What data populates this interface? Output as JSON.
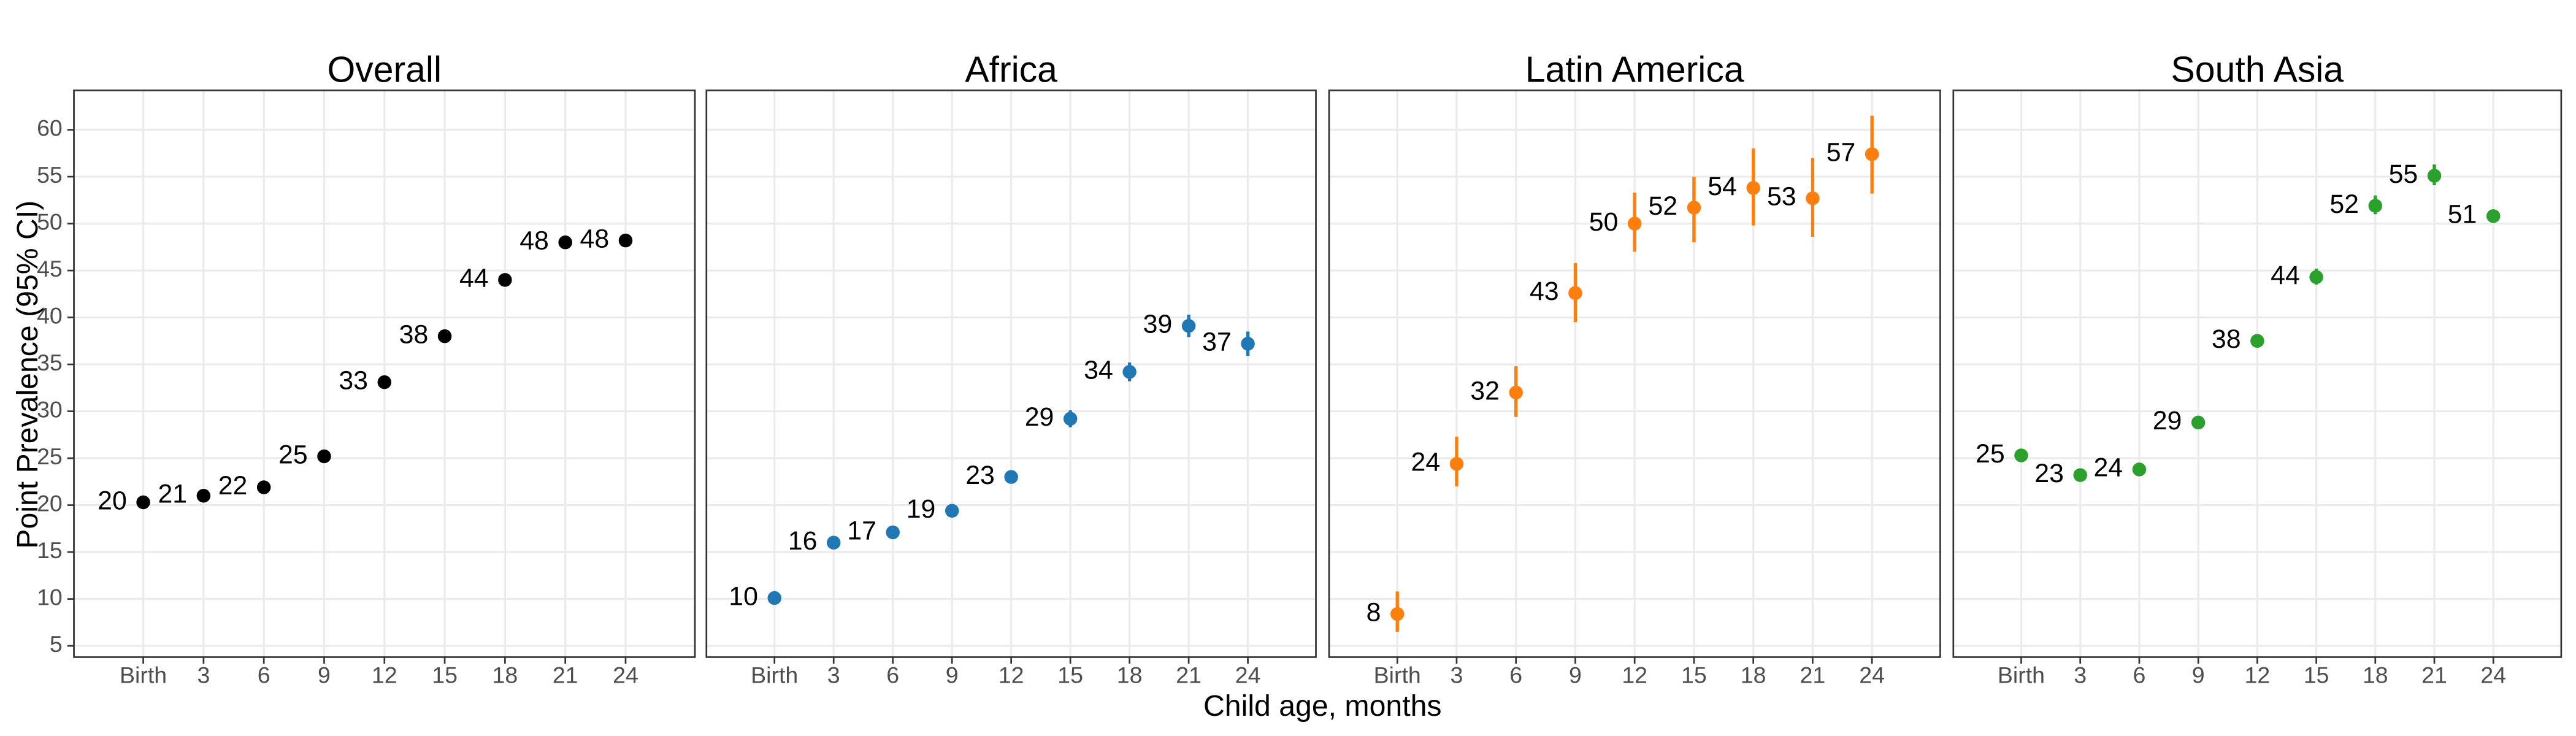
{
  "ylabel": "Point Prevalence (95% CI)",
  "xlabel": "Child age, months",
  "chart_data": [
    {
      "type": "scatter",
      "title": "Overall",
      "color": "#000000",
      "categories": [
        "Birth",
        "3",
        "6",
        "9",
        "12",
        "15",
        "18",
        "21",
        "24"
      ],
      "values": [
        20.3,
        21.0,
        21.9,
        25.2,
        33.1,
        38.0,
        44.0,
        48.0,
        48.2
      ],
      "value_labels": [
        "20",
        "21",
        "22",
        "25",
        "33",
        "38",
        "44",
        "48",
        "48"
      ],
      "ci_lower": [
        20.0,
        20.7,
        21.6,
        24.9,
        32.8,
        37.7,
        43.6,
        47.5,
        47.9
      ],
      "ci_upper": [
        20.6,
        21.3,
        22.2,
        25.5,
        33.4,
        38.3,
        44.4,
        48.5,
        48.5
      ],
      "ylim": [
        3.8,
        64.2
      ],
      "yticks": [
        5,
        10,
        15,
        20,
        25,
        30,
        35,
        40,
        45,
        50,
        55,
        60
      ],
      "grid": true
    },
    {
      "type": "scatter",
      "title": "Africa",
      "color": "#1f77b4",
      "categories": [
        "Birth",
        "3",
        "6",
        "9",
        "12",
        "15",
        "18",
        "21",
        "24"
      ],
      "values": [
        10.1,
        16.0,
        17.1,
        19.4,
        23.0,
        29.2,
        34.2,
        39.1,
        37.2
      ],
      "value_labels": [
        "10",
        "16",
        "17",
        "19",
        "23",
        "29",
        "34",
        "39",
        "37"
      ],
      "ci_lower": [
        9.6,
        15.5,
        16.6,
        18.8,
        22.4,
        28.3,
        33.2,
        37.9,
        35.9
      ],
      "ci_upper": [
        10.6,
        16.5,
        17.6,
        20.0,
        23.6,
        30.1,
        35.2,
        40.3,
        38.5
      ],
      "ylim": [
        3.8,
        64.2
      ],
      "yticks": [
        5,
        10,
        15,
        20,
        25,
        30,
        35,
        40,
        45,
        50,
        55,
        60
      ],
      "grid": true
    },
    {
      "type": "scatter",
      "title": "Latin America",
      "color": "#ff7f0e",
      "categories": [
        "Birth",
        "3",
        "6",
        "9",
        "12",
        "15",
        "18",
        "21",
        "24"
      ],
      "values": [
        8.4,
        24.4,
        32.0,
        42.6,
        50.0,
        51.7,
        53.8,
        52.7,
        57.4
      ],
      "value_labels": [
        "8",
        "24",
        "32",
        "43",
        "50",
        "52",
        "54",
        "53",
        "57"
      ],
      "ci_lower": [
        6.5,
        22.0,
        29.4,
        39.5,
        47.0,
        48.0,
        49.8,
        48.6,
        53.2
      ],
      "ci_upper": [
        10.8,
        27.3,
        34.8,
        45.8,
        53.3,
        55.0,
        58.0,
        57.0,
        61.5
      ],
      "ylim": [
        3.8,
        64.2
      ],
      "yticks": [
        5,
        10,
        15,
        20,
        25,
        30,
        35,
        40,
        45,
        50,
        55,
        60
      ],
      "grid": true
    },
    {
      "type": "scatter",
      "title": "South Asia",
      "color": "#2ca02c",
      "categories": [
        "Birth",
        "3",
        "6",
        "9",
        "12",
        "15",
        "18",
        "21",
        "24"
      ],
      "values": [
        25.3,
        23.2,
        23.8,
        28.8,
        37.5,
        44.3,
        51.9,
        55.1,
        50.8
      ],
      "value_labels": [
        "25",
        "23",
        "24",
        "29",
        "38",
        "44",
        "52",
        "55",
        "51"
      ],
      "ci_lower": [
        24.9,
        22.8,
        23.3,
        28.3,
        36.9,
        43.5,
        51.0,
        54.1,
        50.2
      ],
      "ci_upper": [
        25.7,
        23.6,
        24.3,
        29.3,
        38.1,
        45.2,
        53.0,
        56.3,
        51.4
      ],
      "ylim": [
        3.8,
        64.2
      ],
      "yticks": [
        5,
        10,
        15,
        20,
        25,
        30,
        35,
        40,
        45,
        50,
        55,
        60
      ],
      "grid": true
    }
  ]
}
